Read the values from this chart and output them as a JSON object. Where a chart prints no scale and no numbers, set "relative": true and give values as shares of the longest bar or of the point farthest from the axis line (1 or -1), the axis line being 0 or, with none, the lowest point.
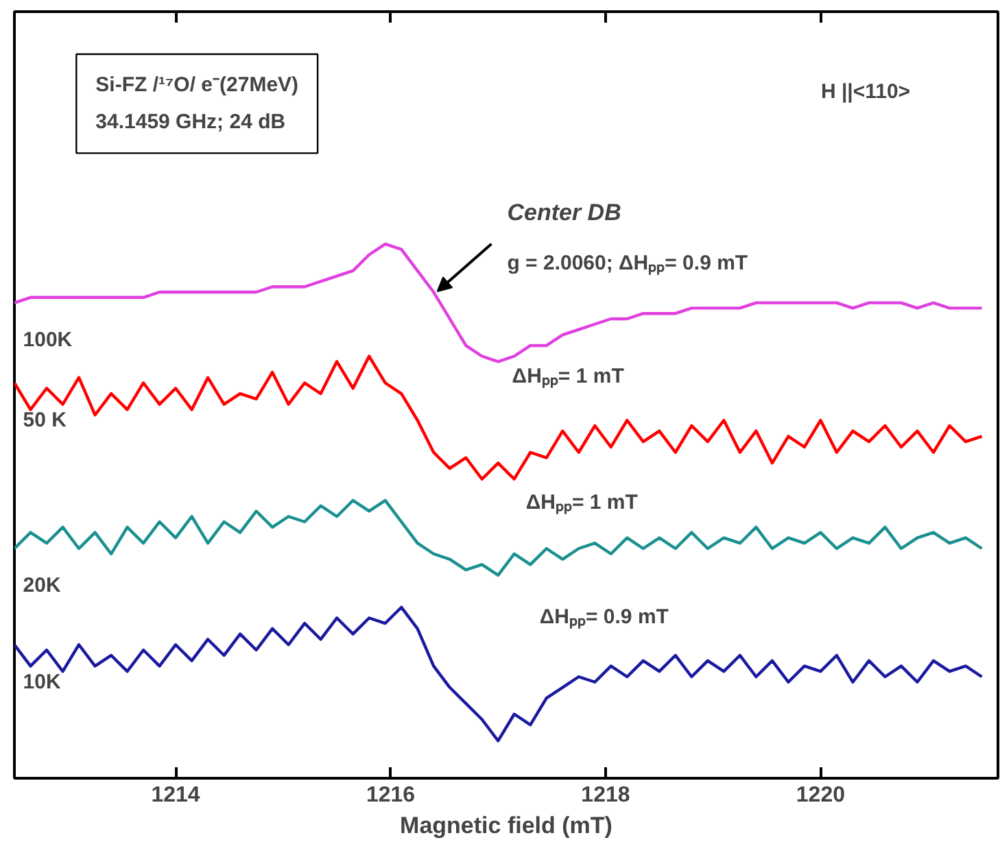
{
  "chart_data": {
    "type": "line",
    "relative": true,
    "xlabel": "Magnetic field (mT)",
    "xlim": [
      1212.5,
      1221.65
    ],
    "xticks": [
      1214,
      1216,
      1218,
      1220
    ],
    "x": [
      1212.5,
      1212.65,
      1212.8,
      1212.95,
      1213.1,
      1213.25,
      1213.4,
      1213.55,
      1213.7,
      1213.85,
      1214.0,
      1214.15,
      1214.3,
      1214.45,
      1214.6,
      1214.75,
      1214.9,
      1215.05,
      1215.2,
      1215.35,
      1215.5,
      1215.65,
      1215.8,
      1215.95,
      1216.1,
      1216.25,
      1216.4,
      1216.55,
      1216.7,
      1216.85,
      1217.0,
      1217.15,
      1217.3,
      1217.45,
      1217.6,
      1217.75,
      1217.9,
      1218.05,
      1218.2,
      1218.35,
      1218.5,
      1218.65,
      1218.8,
      1218.95,
      1219.1,
      1219.25,
      1219.4,
      1219.55,
      1219.7,
      1219.85,
      1220.0,
      1220.15,
      1220.3,
      1220.45,
      1220.6,
      1220.75,
      1220.9,
      1221.05,
      1221.2,
      1221.35,
      1221.5
    ],
    "series": [
      {
        "name": "100K",
        "color": "#e040e0",
        "values": [
          0.89,
          0.9,
          0.9,
          0.9,
          0.9,
          0.9,
          0.9,
          0.9,
          0.9,
          0.91,
          0.91,
          0.91,
          0.91,
          0.91,
          0.91,
          0.91,
          0.92,
          0.92,
          0.92,
          0.93,
          0.94,
          0.95,
          0.98,
          1.0,
          0.99,
          0.95,
          0.91,
          0.86,
          0.81,
          0.79,
          0.78,
          0.79,
          0.81,
          0.81,
          0.83,
          0.84,
          0.85,
          0.86,
          0.86,
          0.87,
          0.87,
          0.87,
          0.88,
          0.88,
          0.88,
          0.88,
          0.89,
          0.89,
          0.89,
          0.89,
          0.89,
          0.89,
          0.88,
          0.89,
          0.89,
          0.89,
          0.88,
          0.89,
          0.88,
          0.88,
          0.88
        ]
      },
      {
        "name": "50 K",
        "color": "#ff0000",
        "values": [
          0.74,
          0.69,
          0.73,
          0.7,
          0.75,
          0.68,
          0.72,
          0.69,
          0.74,
          0.7,
          0.73,
          0.69,
          0.75,
          0.7,
          0.72,
          0.71,
          0.76,
          0.7,
          0.74,
          0.72,
          0.78,
          0.73,
          0.79,
          0.74,
          0.72,
          0.67,
          0.61,
          0.58,
          0.6,
          0.56,
          0.59,
          0.56,
          0.61,
          0.6,
          0.65,
          0.61,
          0.66,
          0.62,
          0.67,
          0.63,
          0.65,
          0.61,
          0.66,
          0.63,
          0.67,
          0.61,
          0.65,
          0.59,
          0.64,
          0.62,
          0.67,
          0.61,
          0.65,
          0.63,
          0.66,
          0.62,
          0.65,
          0.61,
          0.66,
          0.63,
          0.64
        ]
      },
      {
        "name": "20K",
        "color": "#1a9090",
        "values": [
          0.43,
          0.46,
          0.44,
          0.47,
          0.43,
          0.46,
          0.42,
          0.47,
          0.44,
          0.48,
          0.45,
          0.49,
          0.44,
          0.48,
          0.46,
          0.5,
          0.47,
          0.49,
          0.48,
          0.51,
          0.49,
          0.52,
          0.5,
          0.52,
          0.48,
          0.44,
          0.42,
          0.41,
          0.39,
          0.4,
          0.38,
          0.42,
          0.4,
          0.43,
          0.41,
          0.43,
          0.44,
          0.42,
          0.45,
          0.43,
          0.45,
          0.43,
          0.46,
          0.43,
          0.45,
          0.44,
          0.47,
          0.43,
          0.45,
          0.44,
          0.46,
          0.43,
          0.45,
          0.44,
          0.47,
          0.43,
          0.45,
          0.46,
          0.44,
          0.45,
          0.43
        ]
      },
      {
        "name": "10K",
        "color": "#1a1aa0",
        "values": [
          0.25,
          0.21,
          0.24,
          0.2,
          0.25,
          0.21,
          0.23,
          0.2,
          0.24,
          0.21,
          0.25,
          0.22,
          0.26,
          0.23,
          0.27,
          0.24,
          0.28,
          0.25,
          0.29,
          0.26,
          0.3,
          0.27,
          0.3,
          0.29,
          0.32,
          0.28,
          0.21,
          0.17,
          0.14,
          0.11,
          0.07,
          0.12,
          0.1,
          0.15,
          0.17,
          0.19,
          0.18,
          0.21,
          0.19,
          0.22,
          0.2,
          0.23,
          0.19,
          0.22,
          0.2,
          0.23,
          0.19,
          0.22,
          0.18,
          0.21,
          0.2,
          0.23,
          0.18,
          0.22,
          0.19,
          0.21,
          0.18,
          0.22,
          0.2,
          0.21,
          0.19
        ]
      }
    ],
    "annotations": [
      "Si-FZ /¹⁷O/ e⁻(27MeV)",
      "34.1459 GHz; 24 dB",
      "H ||<110>",
      "Center DB",
      "g = 2.0060; ΔHₚₚ= 0.9 mT",
      "ΔHₚₚ= 1 mT",
      "ΔHₚₚ= 1 mT",
      "ΔHₚₚ= 0.9 mT"
    ],
    "grid": false,
    "marker": "none",
    "line_style": "solid"
  }
}
